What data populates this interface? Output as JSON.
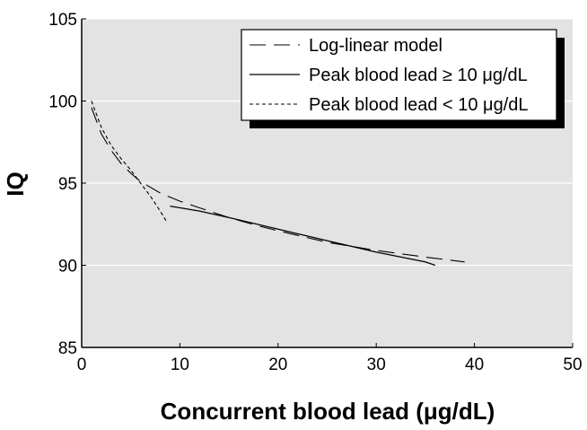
{
  "chart_data": {
    "type": "line",
    "xlabel": "Concurrent blood lead (μg/dL)",
    "ylabel": "IQ",
    "xlim": [
      0,
      50
    ],
    "ylim": [
      85,
      105
    ],
    "x_ticks": [
      "0",
      "10",
      "20",
      "30",
      "40",
      "50"
    ],
    "y_ticks": [
      "85",
      "90",
      "95",
      "100",
      "105"
    ],
    "grid": "horizontal",
    "background": "#e3e3e3",
    "legend_position": "top-right",
    "series": [
      {
        "name": "Log-linear model",
        "style": "long-dash",
        "x": [
          1,
          2,
          3,
          4,
          5,
          6,
          8,
          10,
          12,
          15,
          18,
          20,
          25,
          30,
          35,
          39
        ],
        "y": [
          99.6,
          98.0,
          97.0,
          96.2,
          95.6,
          95.1,
          94.4,
          93.9,
          93.5,
          92.9,
          92.4,
          92.1,
          91.4,
          90.9,
          90.5,
          90.2
        ]
      },
      {
        "name": "Peak blood lead ≥ 10 μg/dL",
        "style": "solid",
        "x": [
          9,
          12,
          15,
          20,
          25,
          30,
          35,
          36
        ],
        "y": [
          93.6,
          93.3,
          92.9,
          92.2,
          91.5,
          90.8,
          90.2,
          90.0
        ]
      },
      {
        "name": "Peak blood lead < 10 μg/dL",
        "style": "short-dash",
        "x": [
          1,
          2,
          3,
          4,
          5,
          6,
          7,
          8,
          8.7
        ],
        "y": [
          100.0,
          98.4,
          97.3,
          96.5,
          95.8,
          95.0,
          94.2,
          93.3,
          92.6
        ]
      }
    ]
  }
}
